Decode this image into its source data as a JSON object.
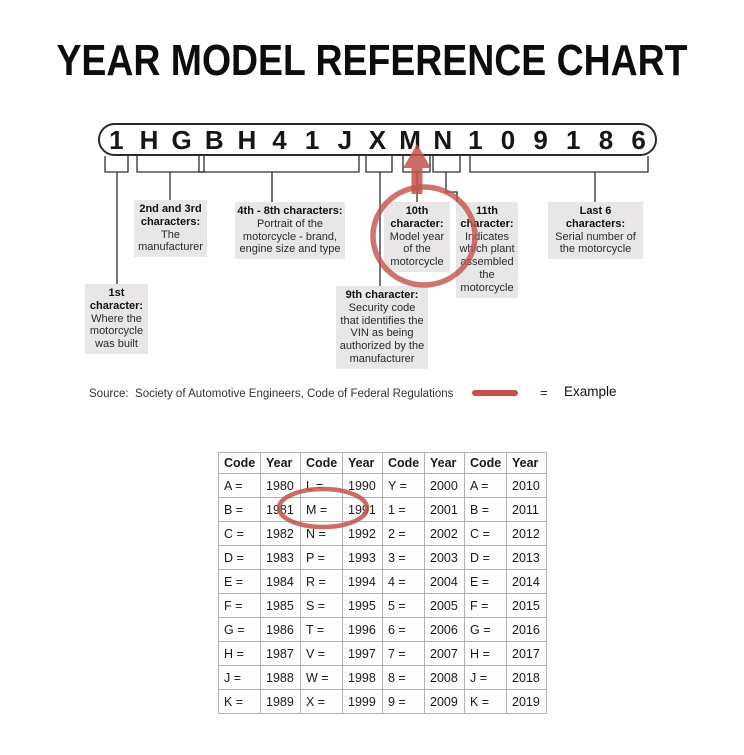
{
  "title": "YEAR MODEL REFERENCE CHART",
  "vin": {
    "characters": [
      "1",
      "H",
      "G",
      "B",
      "H",
      "4",
      "1",
      "J",
      "X",
      "M",
      "N",
      "1",
      "0",
      "9",
      "1",
      "8",
      "6"
    ]
  },
  "callouts": {
    "first": {
      "heading": "1st character:",
      "body": "Where the motorcycle was built"
    },
    "second_third": {
      "heading": "2nd and 3rd characters:",
      "body": "The manufacturer"
    },
    "fourth_eighth": {
      "heading": "4th - 8th characters:",
      "body": "Portrait of the motorcycle - brand, engine size and type"
    },
    "ninth": {
      "heading": "9th character:",
      "body": "Security code that identifies the VIN as being authorized by the manufacturer"
    },
    "tenth": {
      "heading": "10th character:",
      "body": "Model year of the motorcycle"
    },
    "eleventh": {
      "heading": "11th character:",
      "body": "Indicates which plant assembled the motorcycle"
    },
    "last_six": {
      "heading": "Last 6 characters:",
      "body": "Serial number of the motorcycle"
    }
  },
  "footer": {
    "source": "Source:  Society of Automotive Engineers, Code of Federal Regulations",
    "legend_equals": "=",
    "legend_label": "Example"
  },
  "colors": {
    "example_red": "#c4524a",
    "callout_bg": "#e8e6e6",
    "line": "#2e2e2e"
  },
  "chart_data": {
    "type": "table",
    "columns": [
      "Code",
      "Year",
      "Code",
      "Year",
      "Code",
      "Year",
      "Code",
      "Year"
    ],
    "rows": [
      [
        "A =",
        "1980",
        "L =",
        "1990",
        "Y =",
        "2000",
        "A =",
        "2010"
      ],
      [
        "B =",
        "1981",
        "M =",
        "1991",
        "1 =",
        "2001",
        "B =",
        "2011"
      ],
      [
        "C =",
        "1982",
        "N =",
        "1992",
        "2 =",
        "2002",
        "C =",
        "2012"
      ],
      [
        "D =",
        "1983",
        "P =",
        "1993",
        "3 =",
        "2003",
        "D =",
        "2013"
      ],
      [
        "E =",
        "1984",
        "R =",
        "1994",
        "4 =",
        "2004",
        "E =",
        "2014"
      ],
      [
        "F =",
        "1985",
        "S =",
        "1995",
        "5 =",
        "2005",
        "F =",
        "2015"
      ],
      [
        "G =",
        "1986",
        "T =",
        "1996",
        "6 =",
        "2006",
        "G =",
        "2016"
      ],
      [
        "H =",
        "1987",
        "V =",
        "1997",
        "7 =",
        "2007",
        "H =",
        "2017"
      ],
      [
        "J =",
        "1988",
        "W =",
        "1998",
        "8 =",
        "2008",
        "J =",
        "2018"
      ],
      [
        "K =",
        "1989",
        "X =",
        "1999",
        "9 =",
        "2009",
        "K =",
        "2019"
      ]
    ],
    "annotations": [
      "Red ellipse highlights table entry M = 1991 as the example",
      "Red arrow and circle mark the 10th VIN character (M) as the example"
    ]
  }
}
